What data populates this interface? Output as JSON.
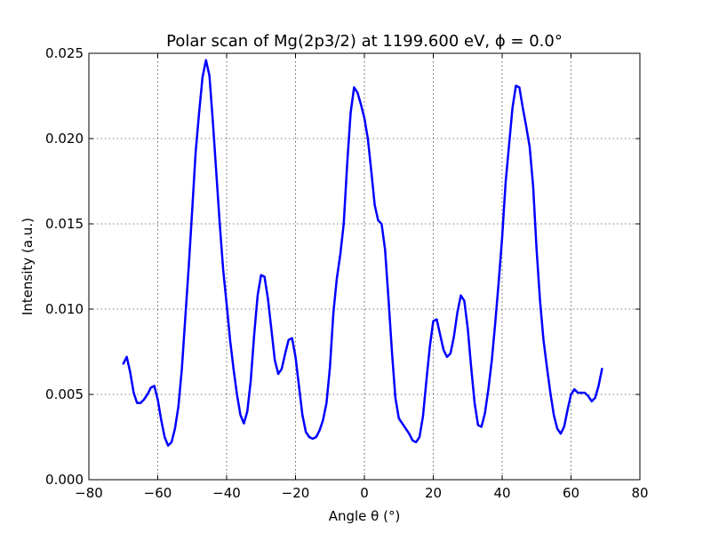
{
  "chart_data": {
    "type": "line",
    "title": "Polar scan of Mg(2p3/2) at 1199.600 eV, ϕ = 0.0°",
    "xlabel": "Angle θ (°)",
    "ylabel": "Intensity (a.u.)",
    "xlim": [
      -80,
      80
    ],
    "ylim": [
      0,
      0.025
    ],
    "xticks": [
      -80,
      -60,
      -40,
      -20,
      0,
      20,
      40,
      60,
      80
    ],
    "xtick_labels": [
      "−80",
      "−60",
      "−40",
      "−20",
      "0",
      "20",
      "40",
      "60",
      "80"
    ],
    "yticks": [
      0.0,
      0.005,
      0.01,
      0.015,
      0.02,
      0.025
    ],
    "ytick_labels": [
      "0.000",
      "0.005",
      "0.010",
      "0.015",
      "0.020",
      "0.025"
    ],
    "grid": true,
    "series": [
      {
        "color": "#0000ff",
        "x": [
          -70,
          -69,
          -68,
          -67,
          -66,
          -65,
          -64,
          -63,
          -62,
          -61,
          -60,
          -59,
          -58,
          -57,
          -56,
          -55,
          -54,
          -53,
          -52,
          -51,
          -50,
          -49,
          -48,
          -47,
          -46,
          -45,
          -44,
          -43,
          -42,
          -41,
          -40,
          -39,
          -38,
          -37,
          -36,
          -35,
          -34,
          -33,
          -32,
          -31,
          -30,
          -29,
          -28,
          -27,
          -26,
          -25,
          -24,
          -23,
          -22,
          -21,
          -20,
          -19,
          -18,
          -17,
          -16,
          -15,
          -14,
          -13,
          -12,
          -11,
          -10,
          -9,
          -8,
          -7,
          -6,
          -5,
          -4,
          -3,
          -2,
          -1,
          0,
          1,
          2,
          3,
          4,
          5,
          6,
          7,
          8,
          9,
          10,
          11,
          12,
          13,
          14,
          15,
          16,
          17,
          18,
          19,
          20,
          21,
          22,
          23,
          24,
          25,
          26,
          27,
          28,
          29,
          30,
          31,
          32,
          33,
          34,
          35,
          36,
          37,
          38,
          39,
          40,
          41,
          42,
          43,
          44,
          45,
          46,
          47,
          48,
          49,
          50,
          51,
          52,
          53,
          54,
          55,
          56,
          57,
          58,
          59,
          60,
          61,
          62,
          63,
          64,
          65,
          66,
          67,
          68,
          69
        ],
        "y": [
          0.0068,
          0.0072,
          0.0063,
          0.0051,
          0.0045,
          0.0045,
          0.0047,
          0.005,
          0.0054,
          0.0055,
          0.0047,
          0.0035,
          0.0025,
          0.002,
          0.0022,
          0.003,
          0.0043,
          0.0065,
          0.0095,
          0.0125,
          0.0158,
          0.0192,
          0.0215,
          0.0236,
          0.0246,
          0.0237,
          0.021,
          0.018,
          0.015,
          0.0123,
          0.0103,
          0.0082,
          0.0065,
          0.005,
          0.0038,
          0.0033,
          0.004,
          0.0058,
          0.0085,
          0.0108,
          0.012,
          0.0119,
          0.0106,
          0.0088,
          0.007,
          0.0062,
          0.0065,
          0.0074,
          0.0082,
          0.0083,
          0.0072,
          0.0055,
          0.0038,
          0.0028,
          0.0025,
          0.0024,
          0.0025,
          0.0029,
          0.0035,
          0.0045,
          0.0066,
          0.0098,
          0.0118,
          0.0132,
          0.015,
          0.0185,
          0.0215,
          0.023,
          0.0227,
          0.022,
          0.0212,
          0.02,
          0.0181,
          0.0161,
          0.0152,
          0.015,
          0.0135,
          0.0106,
          0.0075,
          0.0048,
          0.0036,
          0.0033,
          0.003,
          0.0027,
          0.0023,
          0.0022,
          0.0025,
          0.0037,
          0.0058,
          0.0078,
          0.0093,
          0.0094,
          0.0085,
          0.0076,
          0.0072,
          0.0074,
          0.0084,
          0.0098,
          0.0108,
          0.0105,
          0.0089,
          0.0066,
          0.0045,
          0.0032,
          0.0031,
          0.0039,
          0.0053,
          0.007,
          0.0092,
          0.0116,
          0.0142,
          0.0174,
          0.0196,
          0.0218,
          0.0231,
          0.023,
          0.0218,
          0.0207,
          0.0195,
          0.0172,
          0.0135,
          0.0105,
          0.0082,
          0.0066,
          0.0051,
          0.0038,
          0.003,
          0.0027,
          0.0031,
          0.0041,
          0.005,
          0.0053,
          0.0051,
          0.0051,
          0.0051,
          0.0049,
          0.0046,
          0.0048,
          0.0055,
          0.0065
        ]
      }
    ]
  }
}
